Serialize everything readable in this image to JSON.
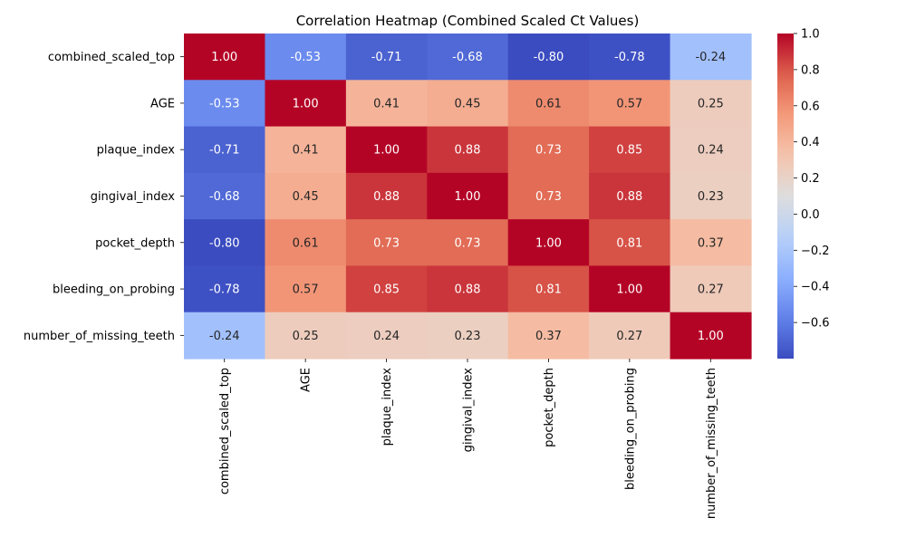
{
  "chart_data": {
    "type": "heatmap",
    "title": "Correlation Heatmap (Combined Scaled Ct Values)",
    "xlabel": "",
    "ylabel": "",
    "rows": [
      "combined_scaled_top",
      "AGE",
      "plaque_index",
      "gingival_index",
      "pocket_depth",
      "bleeding_on_probing",
      "number_of_missing_teeth"
    ],
    "columns": [
      "combined_scaled_top",
      "AGE",
      "plaque_index",
      "gingival_index",
      "pocket_depth",
      "bleeding_on_probing",
      "number_of_missing_teeth"
    ],
    "values": [
      [
        1.0,
        -0.53,
        -0.71,
        -0.68,
        -0.8,
        -0.78,
        -0.24
      ],
      [
        -0.53,
        1.0,
        0.41,
        0.45,
        0.61,
        0.57,
        0.25
      ],
      [
        -0.71,
        0.41,
        1.0,
        0.88,
        0.73,
        0.85,
        0.24
      ],
      [
        -0.68,
        0.45,
        0.88,
        1.0,
        0.73,
        0.88,
        0.23
      ],
      [
        -0.8,
        0.61,
        0.73,
        0.73,
        1.0,
        0.81,
        0.37
      ],
      [
        -0.78,
        0.57,
        0.85,
        0.88,
        0.81,
        1.0,
        0.27
      ],
      [
        -0.24,
        0.25,
        0.24,
        0.23,
        0.37,
        0.27,
        1.0
      ]
    ],
    "value_format": "2 decimals",
    "colormap": "coolwarm",
    "colorbar": {
      "range": [
        -0.8,
        1.0
      ],
      "ticks": [
        -0.6,
        -0.4,
        -0.2,
        0.0,
        0.2,
        0.4,
        0.6,
        0.8,
        1.0
      ],
      "tick_labels": [
        "−0.6",
        "−0.4",
        "−0.2",
        "0.0",
        "0.2",
        "0.4",
        "0.6",
        "0.8",
        "1.0"
      ]
    },
    "grid": false,
    "legend": "colorbar right"
  }
}
